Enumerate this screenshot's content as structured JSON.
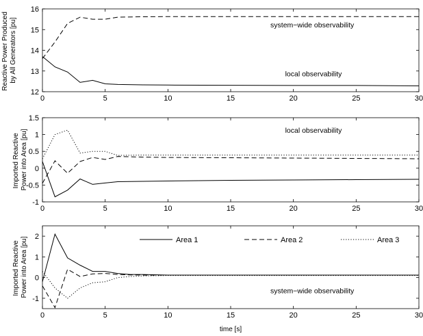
{
  "figure": {
    "xlabel": "time [s]"
  },
  "chart_data": [
    {
      "type": "line",
      "ylabel": [
        "Reactive Power Produced",
        "by All Generators [pu]"
      ],
      "xlim": [
        0,
        30
      ],
      "ylim": [
        12,
        16
      ],
      "xticks": [
        0,
        5,
        10,
        15,
        20,
        25,
        30
      ],
      "yticks": [
        12,
        13,
        14,
        15,
        16
      ],
      "grid": false,
      "annotations": [
        {
          "text": "system−wide observability",
          "x": 21.5,
          "y": 15.1
        },
        {
          "text": "local observability",
          "x": 21.6,
          "y": 12.75
        }
      ],
      "series": [
        {
          "style": "dashed",
          "x": [
            0,
            1,
            2,
            3,
            4,
            5,
            6,
            8,
            10,
            15,
            20,
            25,
            30
          ],
          "y": [
            13.6,
            14.4,
            15.3,
            15.6,
            15.5,
            15.5,
            15.6,
            15.62,
            15.63,
            15.63,
            15.63,
            15.63,
            15.63
          ]
        },
        {
          "style": "solid",
          "x": [
            0,
            1,
            2,
            3,
            4,
            5,
            6,
            8,
            10,
            15,
            20,
            25,
            30
          ],
          "y": [
            13.7,
            13.2,
            12.95,
            12.45,
            12.55,
            12.38,
            12.35,
            12.33,
            12.32,
            12.31,
            12.3,
            12.3,
            12.28
          ]
        }
      ]
    },
    {
      "type": "line",
      "ylabel": [
        "Imported Reactive",
        "Power into Area [pu]"
      ],
      "xlim": [
        0,
        30
      ],
      "ylim": [
        -1,
        1.5
      ],
      "xticks": [
        0,
        5,
        10,
        15,
        20,
        25,
        30
      ],
      "yticks": [
        -1,
        -0.5,
        0,
        0.5,
        1,
        1.5
      ],
      "grid": false,
      "annotations": [
        {
          "text": "local observability",
          "x": 21.6,
          "y": 1.05
        }
      ],
      "series": [
        {
          "style": "solid",
          "x": [
            0,
            1,
            2,
            3,
            4,
            5,
            6,
            8,
            10,
            15,
            20,
            25,
            30
          ],
          "y": [
            0.2,
            -0.85,
            -0.65,
            -0.32,
            -0.48,
            -0.44,
            -0.4,
            -0.39,
            -0.38,
            -0.36,
            -0.35,
            -0.34,
            -0.33
          ]
        },
        {
          "style": "dashed",
          "x": [
            0,
            1,
            2,
            3,
            4,
            5,
            6,
            8,
            10,
            15,
            20,
            25,
            30
          ],
          "y": [
            -0.45,
            0.22,
            -0.15,
            0.2,
            0.32,
            0.26,
            0.35,
            0.33,
            0.32,
            0.31,
            0.3,
            0.29,
            0.28
          ]
        },
        {
          "style": "dotted",
          "x": [
            0,
            1,
            2,
            3,
            4,
            5,
            6,
            8,
            10,
            15,
            20,
            25,
            30
          ],
          "y": [
            0.28,
            1.0,
            1.13,
            0.45,
            0.5,
            0.5,
            0.38,
            0.39,
            0.39,
            0.39,
            0.39,
            0.39,
            0.39
          ]
        }
      ]
    },
    {
      "type": "line",
      "ylabel": [
        "Imported Reactive",
        "Power into Area [pu]"
      ],
      "xlim": [
        0,
        30
      ],
      "ylim": [
        -1.5,
        2.5
      ],
      "xticks": [
        0,
        5,
        10,
        15,
        20,
        25,
        30
      ],
      "yticks": [
        -1,
        0,
        1,
        2
      ],
      "grid": false,
      "legend_placement": "top",
      "annotations": [
        {
          "text": "system−wide observability",
          "x": 21.5,
          "y": -0.75
        }
      ],
      "series": [
        {
          "name": "Area 1",
          "style": "solid",
          "x": [
            0,
            1,
            2,
            3,
            4,
            5,
            6,
            7,
            8,
            10,
            15,
            20,
            25,
            30
          ],
          "y": [
            -0.2,
            2.1,
            0.95,
            0.6,
            0.3,
            0.3,
            0.2,
            0.15,
            0.15,
            0.12,
            0.12,
            0.12,
            0.12,
            0.12
          ]
        },
        {
          "name": "Area 2",
          "style": "dashed",
          "x": [
            0,
            1,
            2,
            3,
            4,
            5,
            6,
            7,
            8,
            10,
            15,
            20,
            25,
            30
          ],
          "y": [
            -0.4,
            -1.45,
            0.4,
            0.05,
            0.18,
            0.2,
            0.15,
            0.13,
            0.12,
            0.12,
            0.12,
            0.12,
            0.12,
            0.12
          ]
        },
        {
          "name": "Area 3",
          "style": "dotted",
          "x": [
            0,
            1,
            2,
            3,
            4,
            5,
            6,
            7,
            8,
            10,
            15,
            20,
            25,
            30
          ],
          "y": [
            0.3,
            -0.5,
            -1.0,
            -0.5,
            -0.25,
            -0.2,
            0.0,
            0.05,
            0.08,
            0.1,
            0.1,
            0.1,
            0.1,
            0.1
          ]
        }
      ]
    }
  ]
}
